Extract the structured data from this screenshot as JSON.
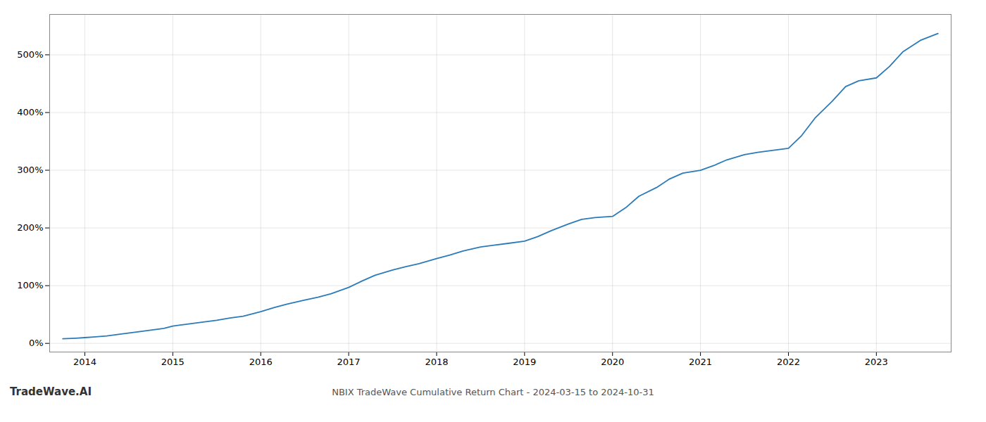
{
  "chart_data": {
    "type": "line",
    "title": "NBIX TradeWave Cumulative Return Chart - 2024-03-15 to 2024-10-31",
    "annotations": [
      "TradeWave.AI"
    ],
    "color": "#2b7bba",
    "grid": true,
    "xlim": [
      2013.6,
      2023.85
    ],
    "ylim": [
      -15,
      570
    ],
    "xticks": [
      2014,
      2015,
      2016,
      2017,
      2018,
      2019,
      2020,
      2021,
      2022,
      2023
    ],
    "yticks": [
      {
        "value": 0,
        "label": "0%"
      },
      {
        "value": 100,
        "label": "100%"
      },
      {
        "value": 200,
        "label": "200%"
      },
      {
        "value": 300,
        "label": "300%"
      },
      {
        "value": 400,
        "label": "400%"
      },
      {
        "value": 500,
        "label": "500%"
      }
    ],
    "x": [
      2013.75,
      2013.9,
      2014.0,
      2014.1,
      2014.25,
      2014.4,
      2014.6,
      2014.75,
      2014.9,
      2015.0,
      2015.15,
      2015.3,
      2015.5,
      2015.65,
      2015.8,
      2016.0,
      2016.15,
      2016.3,
      2016.5,
      2016.65,
      2016.8,
      2017.0,
      2017.15,
      2017.3,
      2017.5,
      2017.65,
      2017.8,
      2018.0,
      2018.15,
      2018.3,
      2018.5,
      2018.65,
      2018.8,
      2019.0,
      2019.15,
      2019.3,
      2019.5,
      2019.65,
      2019.8,
      2020.0,
      2020.15,
      2020.3,
      2020.5,
      2020.65,
      2020.8,
      2021.0,
      2021.15,
      2021.3,
      2021.5,
      2021.65,
      2021.8,
      2022.0,
      2022.15,
      2022.3,
      2022.5,
      2022.65,
      2022.8,
      2023.0,
      2023.15,
      2023.3,
      2023.5,
      2023.7
    ],
    "values": [
      8,
      9,
      10,
      11,
      13,
      16,
      20,
      23,
      26,
      30,
      33,
      36,
      40,
      44,
      47,
      55,
      62,
      68,
      75,
      80,
      86,
      97,
      108,
      118,
      127,
      133,
      138,
      147,
      153,
      160,
      167,
      170,
      173,
      177,
      185,
      195,
      207,
      215,
      218,
      220,
      235,
      255,
      270,
      285,
      295,
      300,
      308,
      318,
      327,
      331,
      334,
      338,
      360,
      390,
      420,
      445,
      455,
      460,
      480,
      505,
      525,
      537
    ]
  }
}
